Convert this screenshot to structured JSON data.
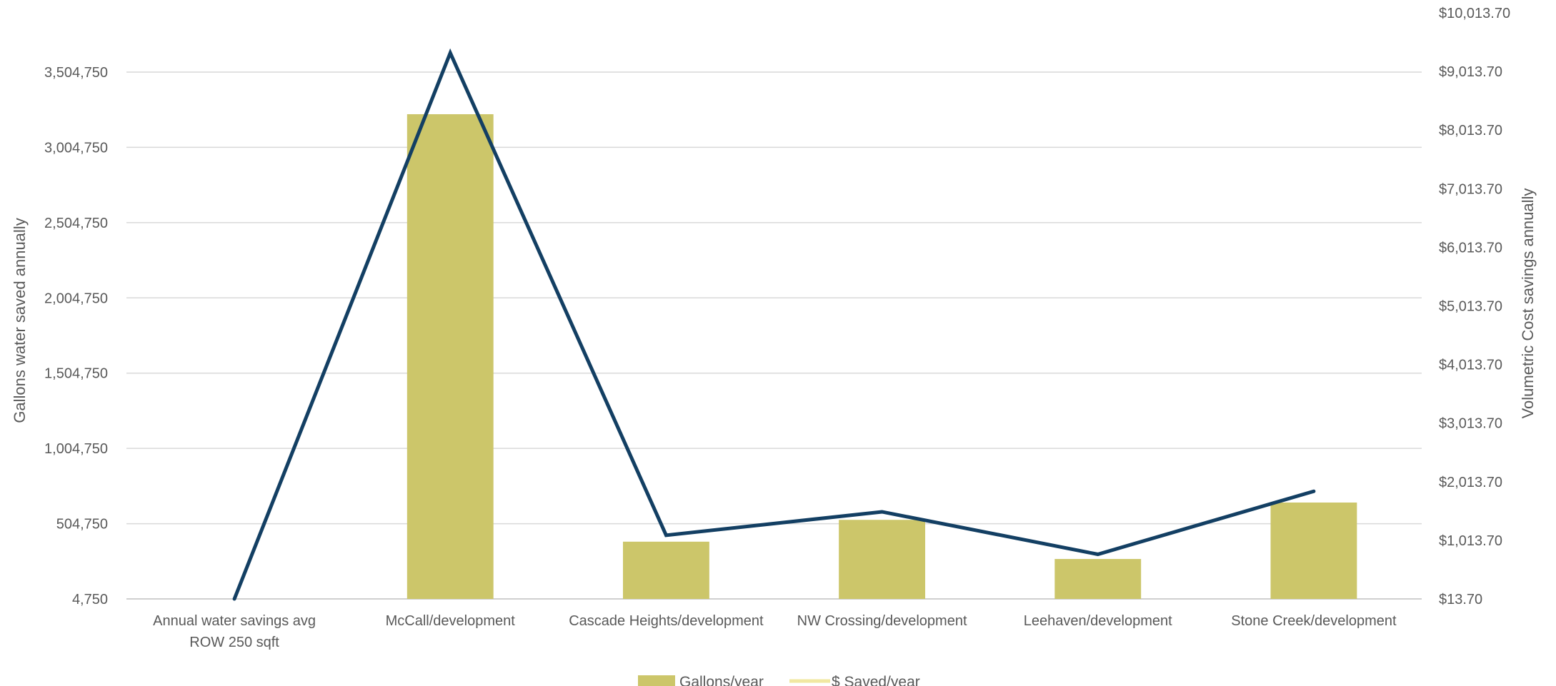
{
  "chart_data": {
    "type": "bar",
    "categories": [
      [
        "Annual water savings avg",
        "ROW 250 sqft"
      ],
      [
        "McCall/development"
      ],
      [
        "Cascade Heights/development"
      ],
      [
        "NW Crossing/development"
      ],
      [
        "Leehaven/development"
      ],
      [
        "Stone Creek/development"
      ]
    ],
    "series": [
      {
        "name": "Gallons/year",
        "type": "bar",
        "axis": "left",
        "color": "#CCC66A",
        "values": [
          4750,
          3225000,
          385000,
          530000,
          270000,
          645000
        ]
      },
      {
        "name": "$ Saved/year",
        "type": "line",
        "axis": "right",
        "color": "#133F63",
        "legend_color": "#F1E8A2",
        "values": [
          13.7,
          9330,
          1100,
          1500,
          775,
          1850
        ]
      }
    ],
    "ylabel": "Gallons water saved annually",
    "y2label": "Volumetric Cost savings annually",
    "ylim": [
      4750,
      3754750
    ],
    "y_ticks": [
      "4,750",
      "504,750",
      "1,004,750",
      "1,504,750",
      "2,004,750",
      "2,504,750",
      "3,004,750",
      "3,504,750"
    ],
    "y2lim": [
      13.7,
      10013.7
    ],
    "y2_ticks": [
      "$13.70",
      "$1,013.70",
      "$2,013.70",
      "$3,013.70",
      "$4,013.70",
      "$5,013.70",
      "$6,013.70",
      "$7,013.70",
      "$8,013.70",
      "$9,013.70",
      "$10,013.70"
    ],
    "grid": true,
    "legend_position": "bottom"
  }
}
